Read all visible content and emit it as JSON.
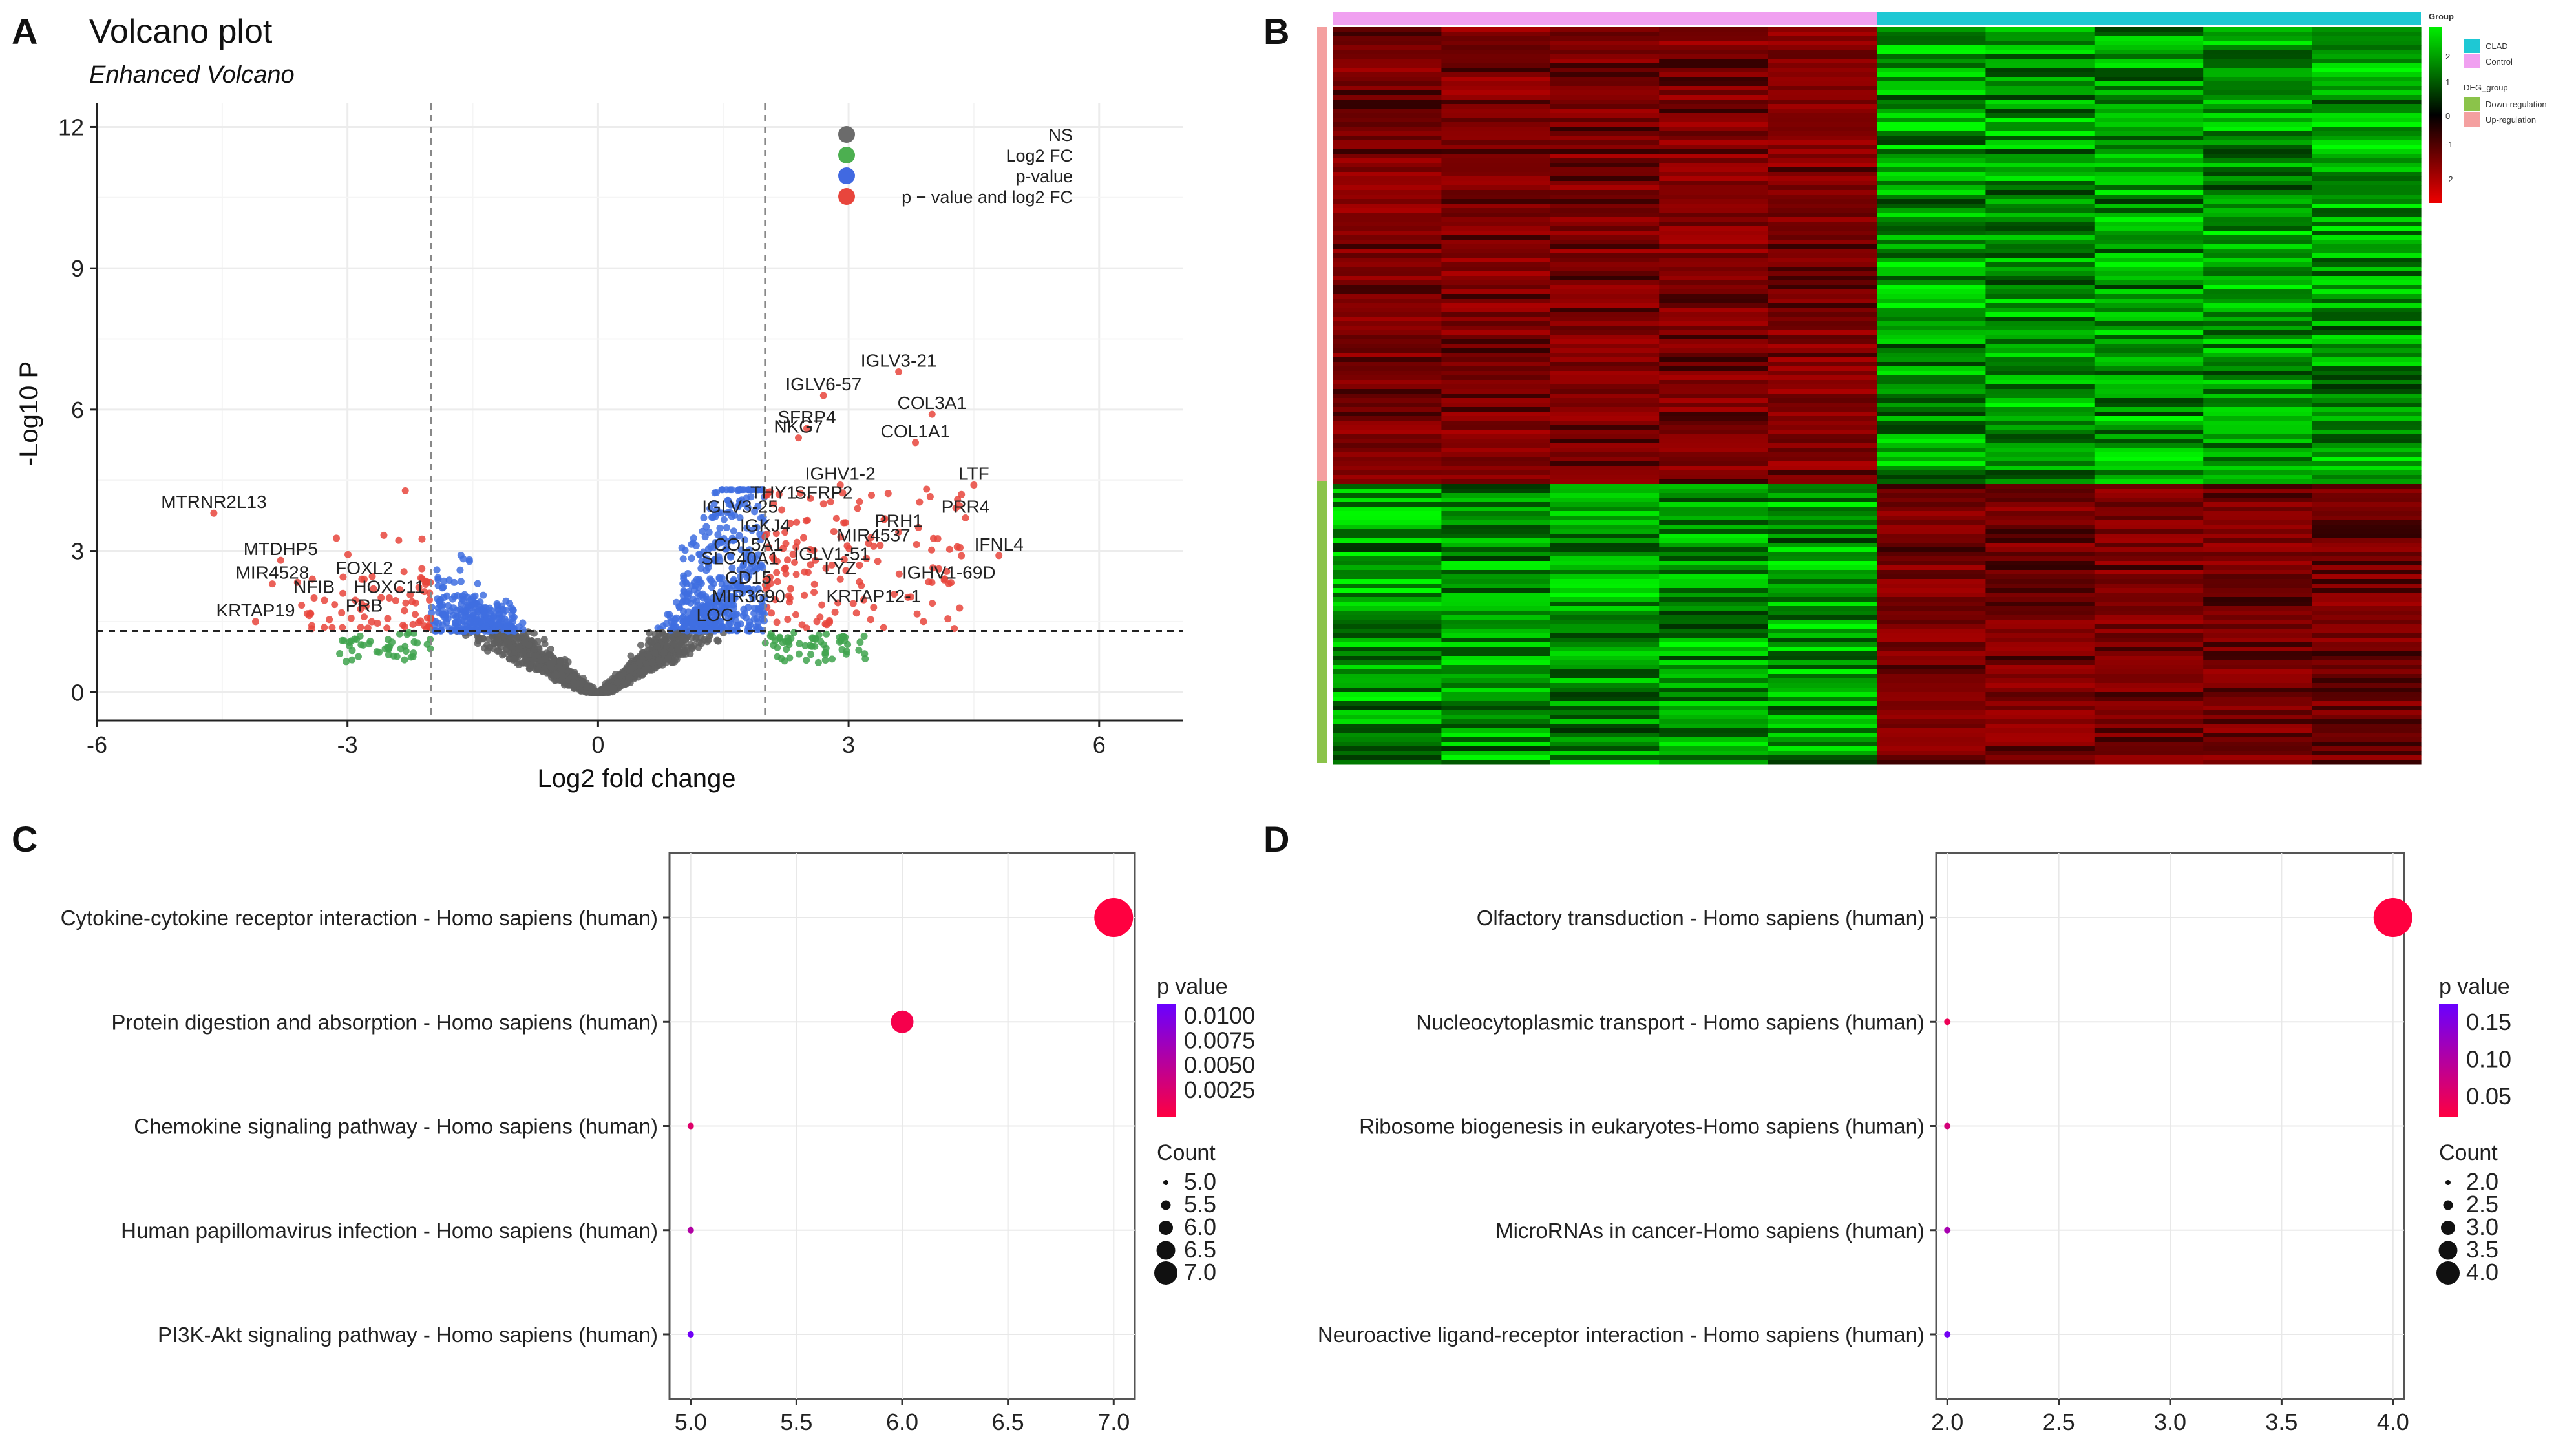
{
  "chart_data": [
    {
      "panel": "A",
      "type": "scatter",
      "title": "Volcano plot",
      "subtitle": "Enhanced Volcano",
      "xlabel": "Log2 fold change",
      "ylabel": "-Log10 P",
      "xlim": [
        -6,
        7
      ],
      "ylim": [
        -0.6,
        12.5
      ],
      "xticks": [
        -6,
        -3,
        0,
        3,
        6
      ],
      "yticks": [
        0,
        3,
        6,
        9,
        12
      ],
      "thresholds": {
        "log2fc": 2,
        "neglog10p": 1.3
      },
      "grid": true,
      "legend_position": "top-right",
      "legend": [
        {
          "label": "NS",
          "color": "#6b6b6b"
        },
        {
          "label": "Log2 FC",
          "color": "#4caf50"
        },
        {
          "label": "p-value",
          "color": "#4169e1"
        },
        {
          "label": "p − value and log2 FC",
          "color": "#e8453c"
        }
      ],
      "labels": [
        {
          "text": "IGLV3-21",
          "x": 3.6,
          "y": 6.8
        },
        {
          "text": "IGLV6-57",
          "x": 2.7,
          "y": 6.3
        },
        {
          "text": "COL3A1",
          "x": 4.0,
          "y": 5.9
        },
        {
          "text": "SFRP4",
          "x": 2.5,
          "y": 5.6
        },
        {
          "text": "NKG7",
          "x": 2.4,
          "y": 5.4
        },
        {
          "text": "COL1A1",
          "x": 3.8,
          "y": 5.3
        },
        {
          "text": "LTF",
          "x": 4.5,
          "y": 4.4
        },
        {
          "text": "IGHV1-2",
          "x": 2.9,
          "y": 4.4
        },
        {
          "text": "THY1",
          "x": 2.1,
          "y": 4.0
        },
        {
          "text": "SFRP2",
          "x": 2.7,
          "y": 4.0
        },
        {
          "text": "PRR4",
          "x": 4.4,
          "y": 3.7
        },
        {
          "text": "IGLV3-25",
          "x": 1.7,
          "y": 3.7
        },
        {
          "text": "PRH1",
          "x": 3.6,
          "y": 3.4
        },
        {
          "text": "IGKJ4",
          "x": 2.0,
          "y": 3.3
        },
        {
          "text": "MIR4537",
          "x": 3.3,
          "y": 3.1
        },
        {
          "text": "IFNL4",
          "x": 4.8,
          "y": 2.9
        },
        {
          "text": "COL5A1",
          "x": 1.8,
          "y": 2.9
        },
        {
          "text": "IGLV1-51",
          "x": 2.8,
          "y": 2.7
        },
        {
          "text": "SLC40A1",
          "x": 1.7,
          "y": 2.6
        },
        {
          "text": "LYZ",
          "x": 2.9,
          "y": 2.4
        },
        {
          "text": "IGHV1-69D",
          "x": 4.2,
          "y": 2.3
        },
        {
          "text": "CD15",
          "x": 1.8,
          "y": 2.2
        },
        {
          "text": "KRTAP12-1",
          "x": 3.3,
          "y": 1.8
        },
        {
          "text": "MIR3690",
          "x": 1.8,
          "y": 1.8
        },
        {
          "text": "LOC",
          "x": 1.4,
          "y": 1.4
        },
        {
          "text": "MTRNR2L13",
          "x": -4.6,
          "y": 3.8
        },
        {
          "text": "MTDHP5",
          "x": -3.8,
          "y": 2.8
        },
        {
          "text": "FOXL2",
          "x": -2.8,
          "y": 2.4
        },
        {
          "text": "MIR4528",
          "x": -3.9,
          "y": 2.3
        },
        {
          "text": "NFIB",
          "x": -3.4,
          "y": 2.0
        },
        {
          "text": "HOXC11",
          "x": -2.5,
          "y": 2.0
        },
        {
          "text": "KRTAP19",
          "x": -4.1,
          "y": 1.5
        },
        {
          "text": "PRB",
          "x": -2.8,
          "y": 1.6
        }
      ]
    },
    {
      "panel": "B",
      "type": "heatmap",
      "column_groups": [
        "Control",
        "CLAD"
      ],
      "columns_per_group": 5,
      "row_groups": [
        "Up-regulation",
        "Down-regulation"
      ],
      "legend": {
        "group_title": "Group",
        "group_items": [
          {
            "label": "CLAD",
            "color": "#1ec8d4"
          },
          {
            "label": "Control",
            "color": "#f0a0f0"
          }
        ],
        "deg_title": "DEG_group",
        "deg_items": [
          {
            "label": "Down-regulation",
            "color": "#8bc34a"
          },
          {
            "label": "Up-regulation",
            "color": "#f4a0a0"
          }
        ],
        "scale_ticks": [
          "2",
          "1",
          "0",
          "-1",
          "-2"
        ]
      }
    },
    {
      "panel": "C",
      "type": "scatter",
      "xlim": [
        4.9,
        7.1
      ],
      "xticks": [
        "5.0",
        "5.5",
        "6.0",
        "6.5",
        "7.0"
      ],
      "categories": [
        "Cytokine-cytokine receptor interaction - Homo sapiens (human)",
        "Protein digestion and absorption - Homo sapiens (human)",
        "Chemokine signaling pathway - Homo sapiens (human)",
        "Human papillomavirus infection - Homo sapiens (human)",
        "PI3K-Akt signaling pathway - Homo sapiens (human)"
      ],
      "values": [
        7,
        6,
        5,
        5,
        5
      ],
      "pvalues": [
        0.0005,
        0.0012,
        0.003,
        0.0065,
        0.0115
      ],
      "pvalue_range": [
        0.0005,
        0.012
      ],
      "color_legend_title": "p value",
      "color_legend_ticks": [
        "0.0100",
        "0.0075",
        "0.0050",
        "0.0025"
      ],
      "size_legend_title": "Count",
      "size_legend_items": [
        "5.0",
        "5.5",
        "6.0",
        "6.5",
        "7.0"
      ],
      "grid": true
    },
    {
      "panel": "D",
      "type": "scatter",
      "xlim": [
        1.95,
        4.05
      ],
      "xticks": [
        "2.0",
        "2.5",
        "3.0",
        "3.5",
        "4.0"
      ],
      "categories": [
        "Olfactory transduction - Homo sapiens (human)",
        "Nucleocytoplasmic transport - Homo sapiens (human)",
        "Ribosome biogenesis in eukaryotes-Homo sapiens (human)",
        "MicroRNAs in cancer-Homo sapiens (human)",
        "Neuroactive ligand-receptor interaction - Homo sapiens (human)"
      ],
      "values": [
        4,
        2,
        2,
        2,
        2
      ],
      "pvalues": [
        0.01,
        0.03,
        0.06,
        0.11,
        0.17
      ],
      "pvalue_range": [
        0.01,
        0.18
      ],
      "color_legend_title": "p value",
      "color_legend_ticks": [
        "0.15",
        "0.10",
        "0.05"
      ],
      "size_legend_title": "Count",
      "size_legend_items": [
        "2.0",
        "2.5",
        "3.0",
        "3.5",
        "4.0"
      ],
      "grid": true
    }
  ],
  "panel_letters": [
    "A",
    "B",
    "C",
    "D"
  ],
  "colors": {
    "ns": "#5f5f5f",
    "fc": "#3fa34d",
    "pv": "#3f6fe0",
    "both": "#e8453c",
    "heat_red": "#c00000",
    "heat_green": "#00e000",
    "p_low": "#ff0040",
    "p_high": "#6a00ff"
  }
}
